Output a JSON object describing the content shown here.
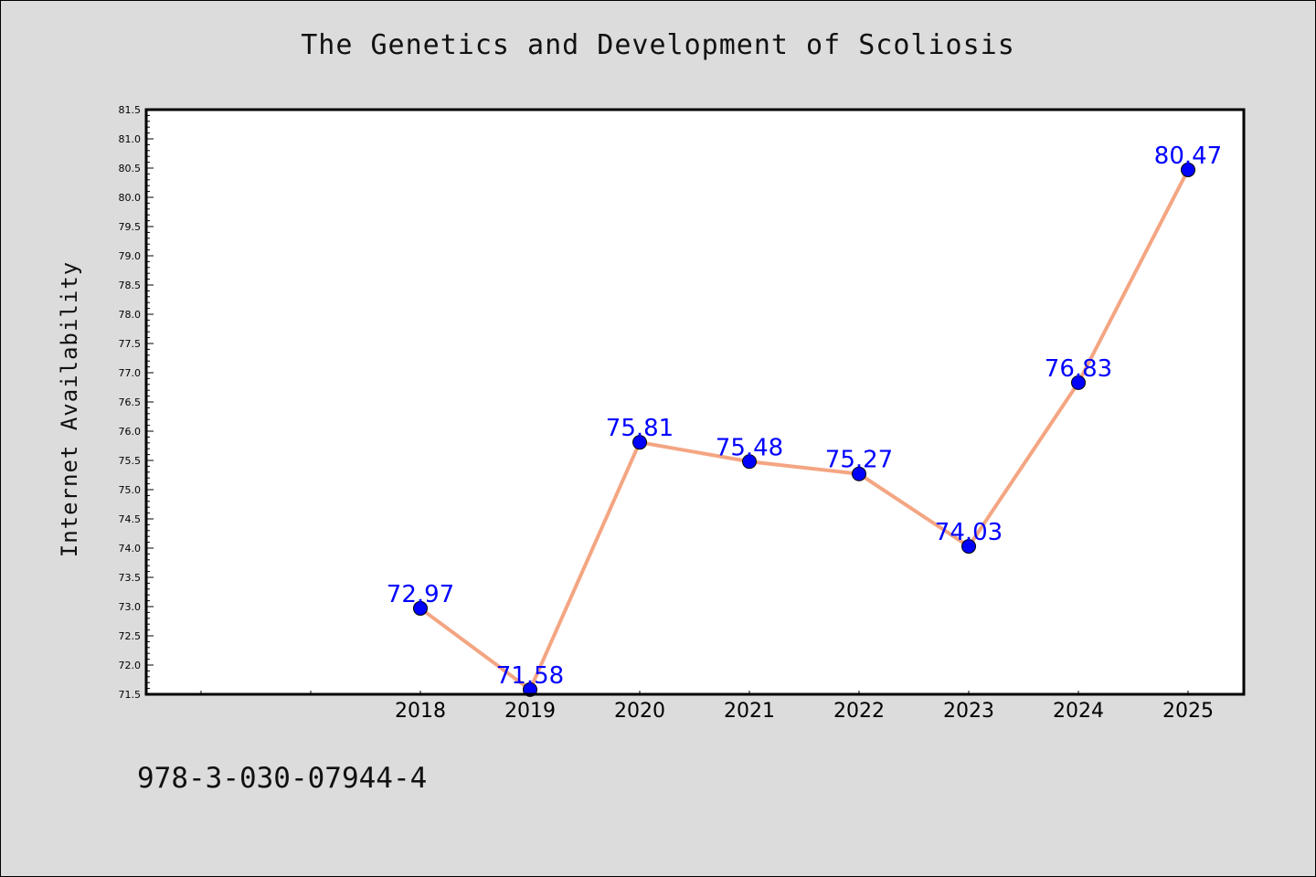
{
  "chart_data": {
    "type": "line",
    "title": "The Genetics and Development of Scoliosis",
    "ylabel": "Internet Availability",
    "xlabel": "",
    "categories": [
      "",
      "",
      "2018",
      "2019",
      "2020",
      "2021",
      "2022",
      "2023",
      "2024",
      "2025"
    ],
    "series": [
      {
        "x": [
          "2018",
          "2019",
          "2020",
          "2021",
          "2022",
          "2023",
          "2024",
          "2025"
        ],
        "values": [
          72.97,
          71.58,
          75.81,
          75.48,
          75.27,
          74.03,
          76.83,
          80.47
        ],
        "labels": [
          "72.97",
          "71.58",
          "75.81",
          "75.48",
          "75.27",
          "74.03",
          "76.83",
          "80.47"
        ]
      }
    ],
    "ylim": [
      71.5,
      81.5
    ],
    "yticks": [
      "71.5",
      "72.0",
      "72.5",
      "73.0",
      "73.5",
      "74.0",
      "74.5",
      "75.0",
      "75.5",
      "76.0",
      "76.5",
      "77.0",
      "77.5",
      "78.0",
      "78.5",
      "79.0",
      "79.5",
      "80.0",
      "80.5",
      "81.0",
      "81.5"
    ],
    "line_color": "#f4a582",
    "marker_color": "#0000ff",
    "label_color": "#0000ff",
    "grid": false,
    "legend": "none"
  },
  "footer": {
    "isbn": "978-3-030-07944-4"
  }
}
